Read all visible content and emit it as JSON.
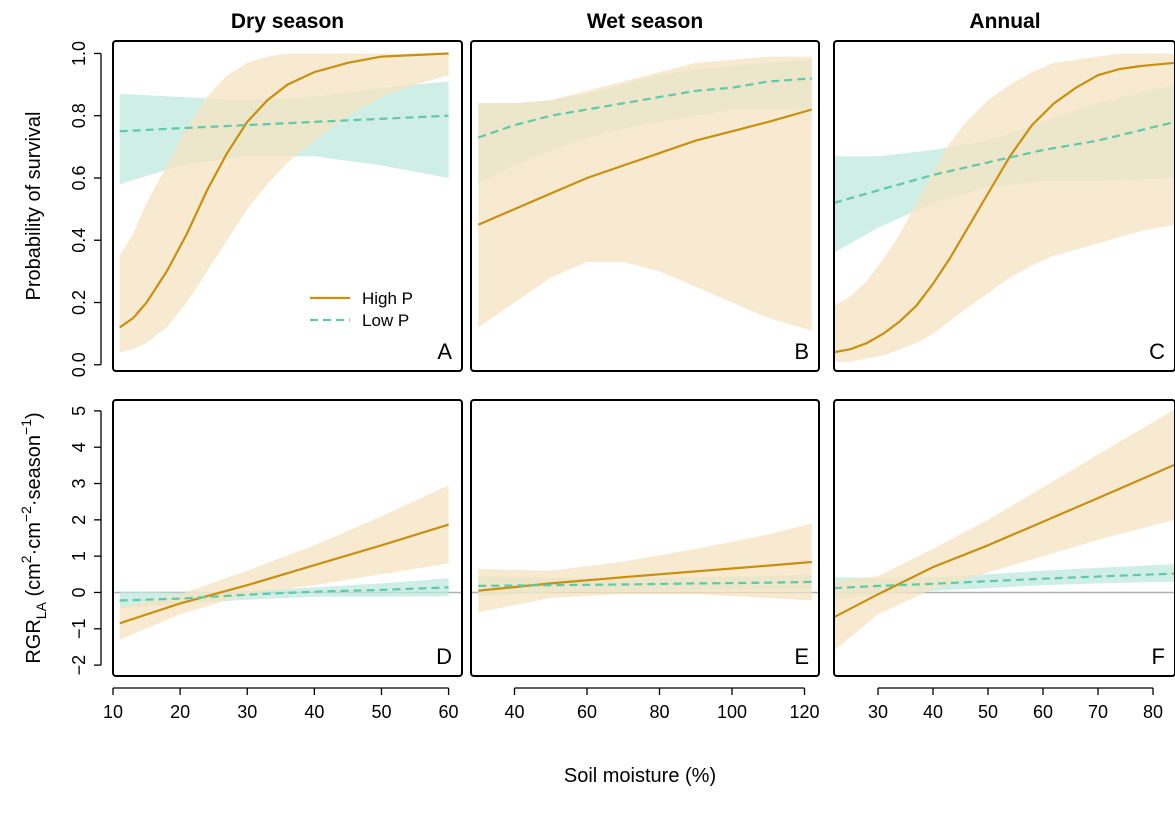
{
  "chart_data": {
    "type": "line",
    "colors": {
      "high_line": "#c8900e",
      "high_band": "#f5e3c1",
      "low_line": "#5fc9a8",
      "low_band": "#bfe9dd",
      "zero_line": "#b0b0b0"
    },
    "x_axis_label": "Soil moisture (%)",
    "legend": {
      "items": [
        "High P",
        "Low P"
      ],
      "placement": "lower-right of panel A"
    },
    "columns": [
      {
        "title": "Dry season",
        "xlim": [
          10,
          62
        ],
        "ticks": [
          10,
          20,
          30,
          40,
          50,
          60
        ],
        "tick_labels": [
          "10",
          "20",
          "30",
          "40",
          "50",
          "60"
        ]
      },
      {
        "title": "Wet season",
        "xlim": [
          28,
          124
        ],
        "ticks": [
          40,
          60,
          80,
          100,
          120
        ],
        "tick_labels": [
          "40",
          "60",
          "80",
          "100",
          "120"
        ]
      },
      {
        "title": "Annual",
        "xlim": [
          22,
          84
        ],
        "ticks": [
          30,
          40,
          50,
          60,
          70,
          80
        ],
        "tick_labels": [
          "30",
          "40",
          "50",
          "60",
          "70",
          "80"
        ]
      }
    ],
    "rows": [
      {
        "ylabel": "Probability of survival",
        "ylim": [
          -0.02,
          1.04
        ],
        "yticks": [
          0,
          0.2,
          0.4,
          0.6,
          0.8,
          1.0
        ],
        "ytick_labels": [
          "0.0",
          "0.2",
          "0.4",
          "0.6",
          "0.8",
          "1.0"
        ]
      },
      {
        "ylabel": "RGR_LA (cm²·cm⁻²·season⁻¹)",
        "ylabel_parts": {
          "base": "RGR",
          "sub": "LA",
          "unit_open": " (cm",
          "e1": "2",
          "mid1": "·cm",
          "e2": "−2",
          "mid2": "·season",
          "e3": "−1",
          "unit_close": ")"
        },
        "ylim": [
          -2.3,
          5.3
        ],
        "yticks": [
          -2,
          -1,
          0,
          1,
          2,
          3,
          4,
          5
        ],
        "ytick_labels": [
          "−2",
          "−1",
          "0",
          "1",
          "2",
          "3",
          "4",
          "5"
        ],
        "zero_line": true
      }
    ],
    "panels": [
      {
        "letter": "A",
        "row": 0,
        "col": 0,
        "series": [
          {
            "name": "High P",
            "x": [
              11,
              13,
              15,
              18,
              21,
              24,
              27,
              30,
              33,
              36,
              40,
              45,
              50,
              55,
              60
            ],
            "y": [
              0.12,
              0.15,
              0.2,
              0.3,
              0.42,
              0.56,
              0.68,
              0.78,
              0.85,
              0.9,
              0.94,
              0.97,
              0.99,
              0.995,
              1.0
            ],
            "lower": [
              0.04,
              0.05,
              0.07,
              0.12,
              0.2,
              0.3,
              0.4,
              0.5,
              0.58,
              0.65,
              0.72,
              0.8,
              0.86,
              0.9,
              0.93
            ],
            "upper": [
              0.35,
              0.42,
              0.52,
              0.64,
              0.76,
              0.86,
              0.93,
              0.97,
              0.99,
              1.0,
              1.0,
              1.0,
              1.0,
              1.0,
              1.0
            ]
          },
          {
            "name": "Low P",
            "x": [
              11,
              20,
              30,
              40,
              50,
              60
            ],
            "y": [
              0.75,
              0.76,
              0.77,
              0.78,
              0.79,
              0.8
            ],
            "lower": [
              0.58,
              0.64,
              0.67,
              0.67,
              0.64,
              0.6
            ],
            "upper": [
              0.87,
              0.86,
              0.85,
              0.86,
              0.89,
              0.91
            ]
          }
        ]
      },
      {
        "letter": "B",
        "row": 0,
        "col": 1,
        "series": [
          {
            "name": "High P",
            "x": [
              30,
              40,
              50,
              60,
              70,
              80,
              90,
              100,
              110,
              122
            ],
            "y": [
              0.45,
              0.5,
              0.55,
              0.6,
              0.64,
              0.68,
              0.72,
              0.75,
              0.78,
              0.82
            ],
            "lower": [
              0.12,
              0.2,
              0.28,
              0.33,
              0.33,
              0.3,
              0.25,
              0.2,
              0.15,
              0.11
            ],
            "upper": [
              0.84,
              0.84,
              0.85,
              0.88,
              0.91,
              0.94,
              0.97,
              0.98,
              0.99,
              0.99
            ]
          },
          {
            "name": "Low P",
            "x": [
              30,
              40,
              50,
              60,
              70,
              80,
              90,
              100,
              110,
              122
            ],
            "y": [
              0.73,
              0.77,
              0.8,
              0.82,
              0.84,
              0.86,
              0.88,
              0.89,
              0.91,
              0.92
            ],
            "lower": [
              0.58,
              0.64,
              0.69,
              0.73,
              0.76,
              0.78,
              0.8,
              0.82,
              0.82,
              0.82
            ],
            "upper": [
              0.84,
              0.84,
              0.85,
              0.87,
              0.9,
              0.93,
              0.95,
              0.96,
              0.97,
              0.98
            ]
          }
        ]
      },
      {
        "letter": "C",
        "row": 0,
        "col": 2,
        "series": [
          {
            "name": "High P",
            "x": [
              22,
              25,
              28,
              31,
              34,
              37,
              40,
              43,
              46,
              50,
              54,
              58,
              62,
              66,
              70,
              74,
              78,
              84
            ],
            "y": [
              0.04,
              0.05,
              0.07,
              0.1,
              0.14,
              0.19,
              0.26,
              0.34,
              0.43,
              0.55,
              0.67,
              0.77,
              0.84,
              0.89,
              0.93,
              0.95,
              0.96,
              0.97
            ],
            "lower": [
              0.01,
              0.01,
              0.02,
              0.03,
              0.05,
              0.07,
              0.1,
              0.14,
              0.18,
              0.23,
              0.28,
              0.32,
              0.35,
              0.37,
              0.39,
              0.41,
              0.43,
              0.45
            ],
            "upper": [
              0.19,
              0.22,
              0.27,
              0.34,
              0.42,
              0.52,
              0.62,
              0.71,
              0.78,
              0.85,
              0.9,
              0.94,
              0.97,
              0.98,
              0.99,
              1.0,
              1.0,
              1.0
            ]
          },
          {
            "name": "Low P",
            "x": [
              22,
              30,
              40,
              50,
              60,
              70,
              84
            ],
            "y": [
              0.52,
              0.56,
              0.61,
              0.65,
              0.69,
              0.72,
              0.78
            ],
            "lower": [
              0.36,
              0.44,
              0.52,
              0.57,
              0.59,
              0.59,
              0.6
            ],
            "upper": [
              0.67,
              0.67,
              0.69,
              0.72,
              0.78,
              0.84,
              0.9
            ]
          }
        ]
      },
      {
        "letter": "D",
        "row": 1,
        "col": 0,
        "series": [
          {
            "name": "High P",
            "x": [
              11,
              20,
              30,
              40,
              50,
              60
            ],
            "y": [
              -0.85,
              -0.3,
              0.2,
              0.75,
              1.3,
              1.87
            ],
            "lower": [
              -1.3,
              -0.6,
              -0.05,
              0.2,
              0.5,
              0.8
            ],
            "upper": [
              -0.4,
              -0.05,
              0.6,
              1.3,
              2.1,
              2.95
            ]
          },
          {
            "name": "Low P",
            "x": [
              11,
              20,
              30,
              40,
              50,
              60
            ],
            "y": [
              -0.22,
              -0.17,
              -0.06,
              0.02,
              0.07,
              0.14
            ],
            "lower": [
              -0.45,
              -0.3,
              -0.2,
              -0.12,
              -0.12,
              -0.1
            ],
            "upper": [
              0.03,
              0.0,
              0.05,
              0.14,
              0.25,
              0.39
            ]
          }
        ]
      },
      {
        "letter": "E",
        "row": 1,
        "col": 1,
        "series": [
          {
            "name": "High P",
            "x": [
              30,
              50,
              70,
              90,
              110,
              122
            ],
            "y": [
              0.05,
              0.25,
              0.42,
              0.58,
              0.74,
              0.84
            ],
            "lower": [
              -0.55,
              -0.15,
              -0.05,
              -0.05,
              -0.15,
              -0.22
            ],
            "upper": [
              0.65,
              0.6,
              0.85,
              1.2,
              1.6,
              1.9
            ]
          },
          {
            "name": "Low P",
            "x": [
              30,
              50,
              70,
              90,
              110,
              122
            ],
            "y": [
              0.18,
              0.2,
              0.22,
              0.25,
              0.27,
              0.29
            ],
            "lower": [
              -0.1,
              0.0,
              0.05,
              0.07,
              0.08,
              0.08
            ],
            "upper": [
              0.45,
              0.4,
              0.4,
              0.42,
              0.45,
              0.5
            ]
          }
        ]
      },
      {
        "letter": "F",
        "row": 1,
        "col": 2,
        "series": [
          {
            "name": "High P",
            "x": [
              22,
              30,
              40,
              50,
              60,
              70,
              84
            ],
            "y": [
              -0.68,
              -0.05,
              0.7,
              1.3,
              1.95,
              2.6,
              3.52
            ],
            "lower": [
              -1.6,
              -0.6,
              0.1,
              0.55,
              1.0,
              1.45,
              2.0
            ],
            "upper": [
              0.3,
              0.45,
              1.2,
              2.0,
              2.9,
              3.8,
              5.05
            ]
          },
          {
            "name": "Low P",
            "x": [
              22,
              30,
              40,
              50,
              60,
              70,
              84
            ],
            "y": [
              0.12,
              0.18,
              0.24,
              0.31,
              0.38,
              0.44,
              0.52
            ],
            "lower": [
              -0.2,
              -0.05,
              0.05,
              0.12,
              0.2,
              0.25,
              0.3
            ],
            "upper": [
              0.42,
              0.4,
              0.42,
              0.5,
              0.6,
              0.68,
              0.78
            ]
          }
        ]
      }
    ]
  }
}
